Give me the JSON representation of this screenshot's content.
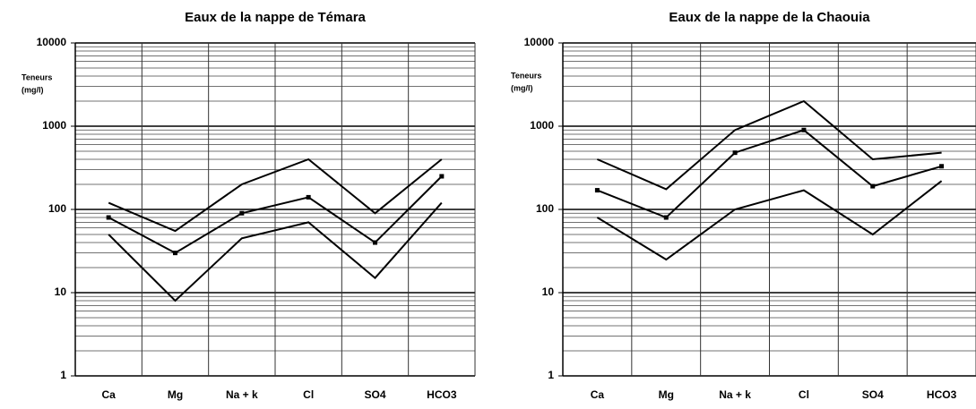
{
  "chart_data": [
    {
      "type": "line",
      "title": "Eaux de la nappe de Témara",
      "ylabel": [
        "Teneurs",
        "(mg/l)"
      ],
      "categories": [
        "Ca",
        "Mg",
        "Na + k",
        "Cl",
        "SO4",
        "HCO3"
      ],
      "log": true,
      "ylim": [
        1,
        10000
      ],
      "yticks": [
        1,
        10,
        100,
        1000,
        10000
      ],
      "grid": true,
      "series": [
        {
          "color": "#000000",
          "values": [
            120,
            55,
            200,
            400,
            90,
            400
          ]
        },
        {
          "color": "#000000",
          "marker": "square",
          "values": [
            80,
            30,
            90,
            140,
            40,
            250
          ]
        },
        {
          "color": "#000000",
          "values": [
            50,
            8,
            45,
            70,
            15,
            120
          ]
        }
      ]
    },
    {
      "type": "line",
      "title": "Eaux de la nappe de la Chaouia",
      "ylabel": [
        "Teneurs",
        "(mg/l)"
      ],
      "categories": [
        "Ca",
        "Mg",
        "Na + k",
        "Cl",
        "SO4",
        "HCO3"
      ],
      "log": true,
      "ylim": [
        1,
        10000
      ],
      "yticks": [
        1,
        10,
        100,
        1000,
        10000
      ],
      "grid": true,
      "series": [
        {
          "color": "#000000",
          "values": [
            400,
            175,
            900,
            2000,
            400,
            480
          ]
        },
        {
          "color": "#000000",
          "marker": "square",
          "values": [
            170,
            80,
            480,
            900,
            190,
            330
          ]
        },
        {
          "color": "#000000",
          "values": [
            80,
            25,
            100,
            170,
            50,
            220
          ]
        }
      ]
    }
  ]
}
